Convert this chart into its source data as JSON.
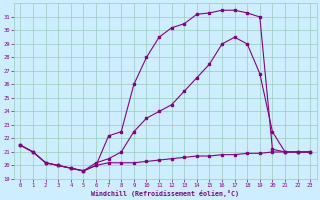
{
  "xlabel": "Windchill (Refroidissement éolien,°C)",
  "xlim_min": -0.5,
  "xlim_max": 23.5,
  "ylim_min": 19,
  "ylim_max": 32,
  "yticks": [
    19,
    20,
    21,
    22,
    23,
    24,
    25,
    26,
    27,
    28,
    29,
    30,
    31
  ],
  "xticks": [
    0,
    1,
    2,
    3,
    4,
    5,
    6,
    7,
    8,
    9,
    10,
    11,
    12,
    13,
    14,
    15,
    16,
    17,
    18,
    19,
    20,
    21,
    22,
    23
  ],
  "bg_color": "#cceeff",
  "line_color": "#880088",
  "grid_color": "#99ccbb",
  "line1_x": [
    0,
    1,
    2,
    3,
    4,
    5,
    6,
    7,
    8,
    9,
    10,
    11,
    12,
    13,
    14,
    15,
    16,
    17,
    18,
    19,
    20,
    21,
    22,
    23
  ],
  "line1_y": [
    21.5,
    21.0,
    20.2,
    20.0,
    19.8,
    19.6,
    20.0,
    22.2,
    22.5,
    26.0,
    28.0,
    29.5,
    30.2,
    30.5,
    31.2,
    31.3,
    31.5,
    31.5,
    31.3,
    31.0,
    21.2,
    21.0,
    21.0,
    21.0
  ],
  "line2_x": [
    0,
    1,
    2,
    3,
    4,
    5,
    6,
    7,
    8,
    9,
    10,
    11,
    12,
    13,
    14,
    15,
    16,
    17,
    18,
    19,
    20,
    21,
    22,
    23
  ],
  "line2_y": [
    21.5,
    21.0,
    20.2,
    20.0,
    19.8,
    19.6,
    20.2,
    20.5,
    21.0,
    22.5,
    23.5,
    24.0,
    24.5,
    25.5,
    26.5,
    27.5,
    29.0,
    29.5,
    29.0,
    26.8,
    22.5,
    21.0,
    21.0,
    21.0
  ],
  "line3_x": [
    0,
    1,
    2,
    3,
    4,
    5,
    6,
    7,
    8,
    9,
    10,
    11,
    12,
    13,
    14,
    15,
    16,
    17,
    18,
    19,
    20,
    21,
    22,
    23
  ],
  "line3_y": [
    21.5,
    21.0,
    20.2,
    20.0,
    19.8,
    19.6,
    20.0,
    20.2,
    20.2,
    20.2,
    20.3,
    20.4,
    20.5,
    20.6,
    20.7,
    20.7,
    20.8,
    20.8,
    20.9,
    20.9,
    21.0,
    21.0,
    21.0,
    21.0
  ]
}
